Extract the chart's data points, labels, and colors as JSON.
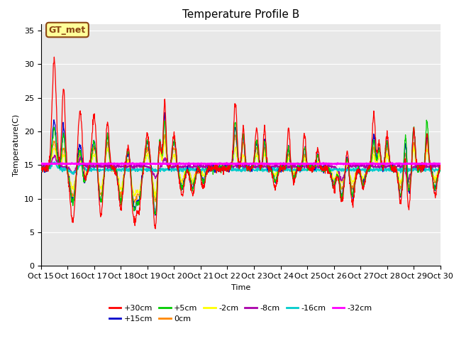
{
  "title": "Temperature Profile B",
  "xlabel": "Time",
  "ylabel": "Temperature(C)",
  "annotation_text": "GT_met",
  "xlim": [
    0,
    15
  ],
  "ylim": [
    0,
    36
  ],
  "yticks": [
    0,
    5,
    10,
    15,
    20,
    25,
    30,
    35
  ],
  "xtick_labels": [
    "Oct 15",
    "Oct 16",
    "Oct 17",
    "Oct 18",
    "Oct 19",
    "Oct 20",
    "Oct 21",
    "Oct 22",
    "Oct 23",
    "Oct 24",
    "Oct 25",
    "Oct 26",
    "Oct 27",
    "Oct 28",
    "Oct 29",
    "Oct 30"
  ],
  "series_colors": {
    "+30cm": "#ff0000",
    "+15cm": "#0000cc",
    "+5cm": "#00cc00",
    "0cm": "#ff8800",
    "-2cm": "#ffff00",
    "-8cm": "#aa00aa",
    "-16cm": "#00cccc",
    "-32cm": "#ff00ff"
  },
  "plot_bg": "#e8e8e8",
  "fig_bg": "#ffffff",
  "title_fontsize": 11,
  "legend_fontsize": 8,
  "axis_label_fontsize": 8,
  "tick_fontsize": 8
}
